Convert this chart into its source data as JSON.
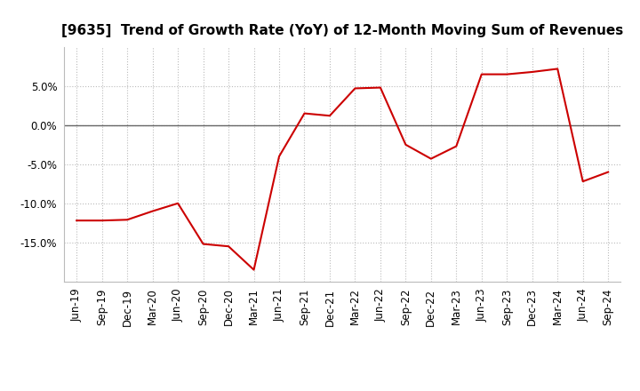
{
  "title": "[9635]  Trend of Growth Rate (YoY) of 12-Month Moving Sum of Revenues",
  "line_color": "#cc0000",
  "background_color": "#ffffff",
  "plot_bg_color": "#ffffff",
  "x_labels": [
    "Jun-19",
    "Sep-19",
    "Dec-19",
    "Mar-20",
    "Jun-20",
    "Sep-20",
    "Dec-20",
    "Mar-21",
    "Jun-21",
    "Sep-21",
    "Dec-21",
    "Mar-22",
    "Jun-22",
    "Sep-22",
    "Dec-22",
    "Mar-23",
    "Jun-23",
    "Sep-23",
    "Dec-23",
    "Mar-24",
    "Jun-24",
    "Sep-24"
  ],
  "y_values": [
    -0.122,
    -0.122,
    -0.121,
    -0.11,
    -0.1,
    -0.152,
    -0.155,
    -0.185,
    -0.04,
    0.015,
    0.012,
    0.047,
    0.048,
    -0.025,
    -0.043,
    -0.027,
    0.065,
    0.065,
    0.068,
    0.072,
    -0.072,
    -0.06
  ],
  "ylim": [
    -0.2,
    0.1
  ],
  "yticks": [
    -0.15,
    -0.1,
    -0.05,
    0.0,
    0.05
  ],
  "title_fontsize": 11,
  "tick_fontsize": 8.5,
  "zero_line_color": "#666666",
  "grid_color": "#bbbbbb"
}
